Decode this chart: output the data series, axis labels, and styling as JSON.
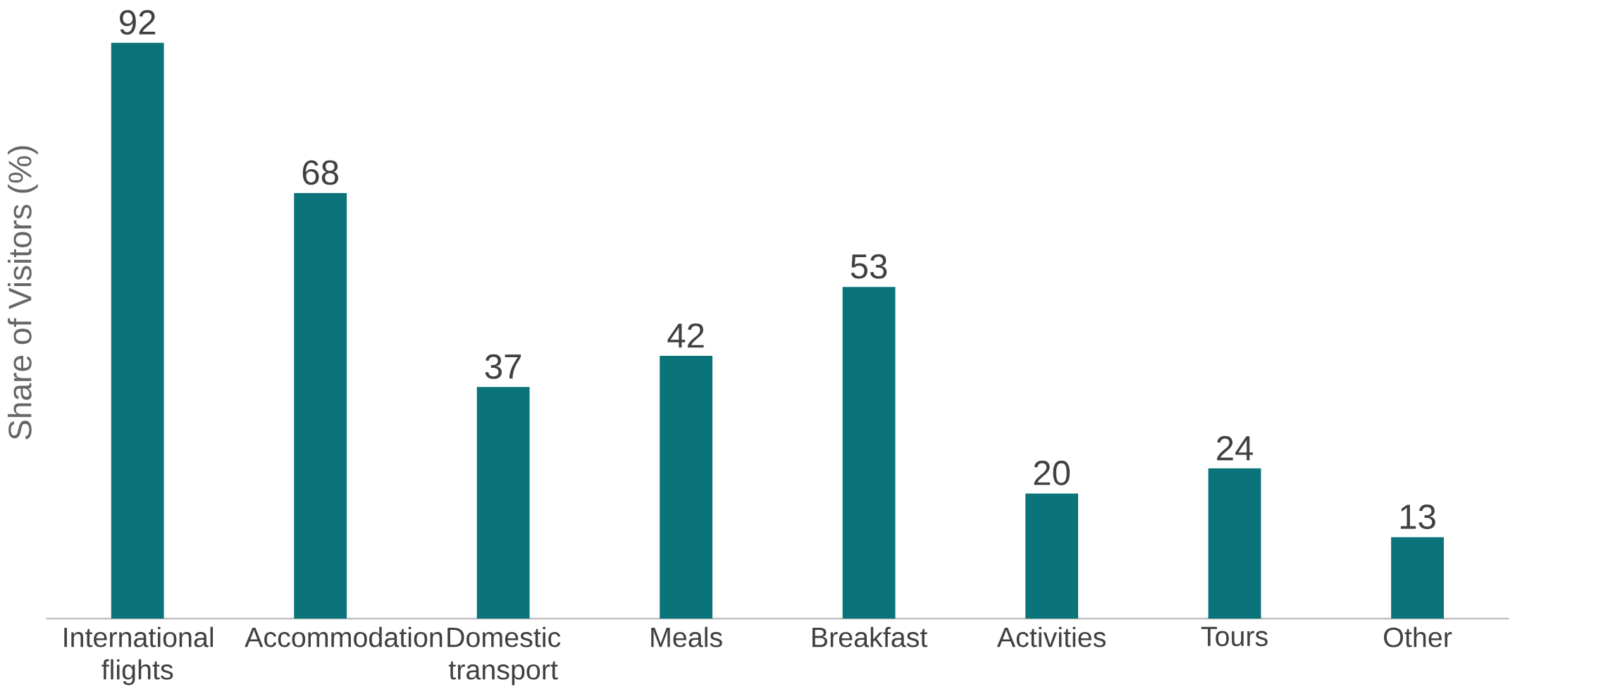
{
  "chart_data": {
    "type": "bar",
    "ylabel": "Share of Visitors (%)",
    "categories": [
      "International flights",
      "Accommodation",
      "Domestic transport",
      "Meals",
      "Breakfast",
      "Activities",
      "Tours",
      "Other"
    ],
    "values": [
      92,
      68,
      37,
      42,
      53,
      20,
      24,
      13
    ],
    "color": "#0b737a",
    "data_labels": true
  }
}
